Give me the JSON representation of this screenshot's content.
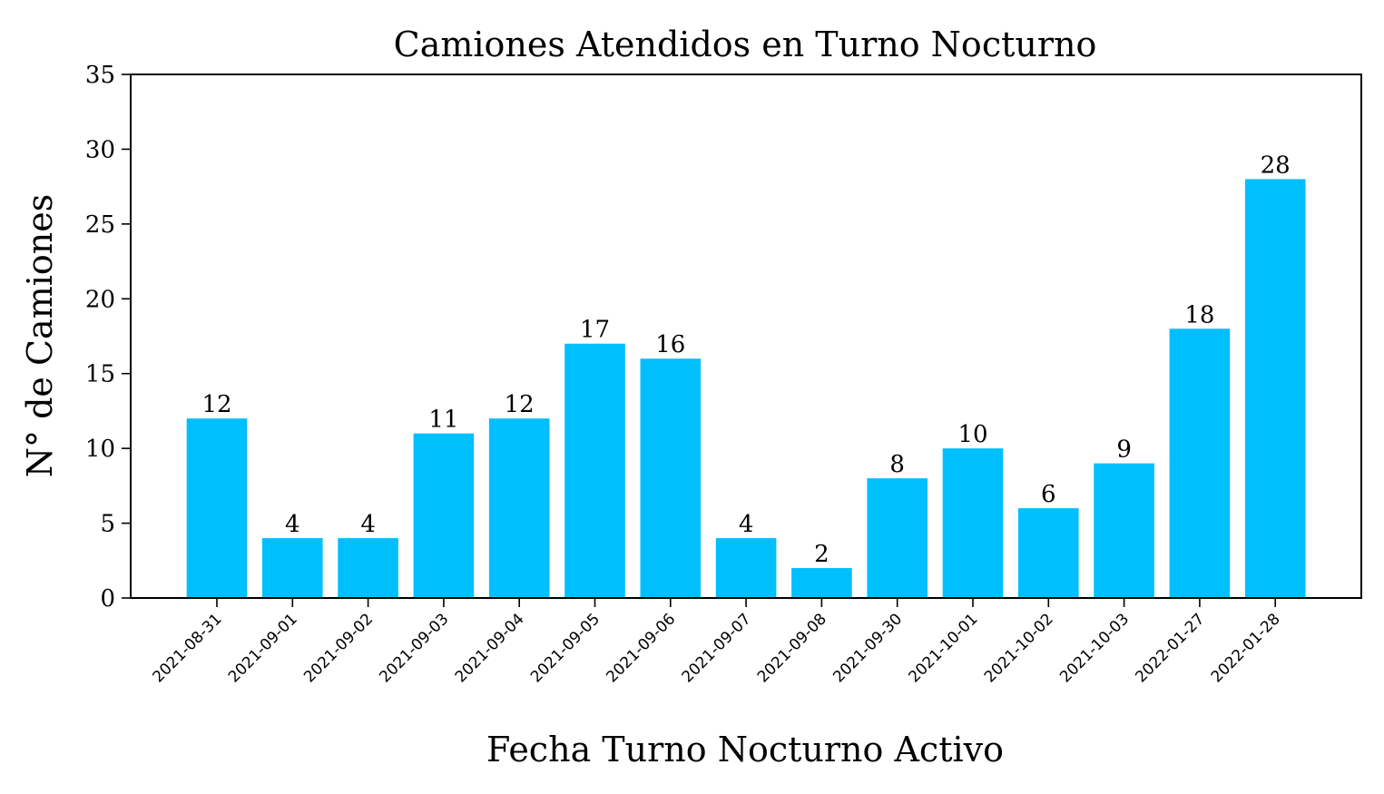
{
  "chart_data": {
    "type": "bar",
    "title": "Camiones Atendidos en Turno Nocturno",
    "xlabel": "Fecha Turno Nocturno Activo",
    "ylabel": "N° de Camiones",
    "categories": [
      "2021-08-31",
      "2021-09-01",
      "2021-09-02",
      "2021-09-03",
      "2021-09-04",
      "2021-09-05",
      "2021-09-06",
      "2021-09-07",
      "2021-09-08",
      "2021-09-30",
      "2021-10-01",
      "2021-10-02",
      "2021-10-03",
      "2022-01-27",
      "2022-01-28"
    ],
    "values": [
      12,
      4,
      4,
      11,
      12,
      17,
      16,
      4,
      2,
      8,
      10,
      6,
      9,
      18,
      28
    ],
    "ylim": [
      0,
      35
    ],
    "yticks": [
      0,
      5,
      10,
      15,
      20,
      25,
      30,
      35
    ],
    "grid": false,
    "data_labels": true,
    "bar_color": "#00BFFF"
  }
}
